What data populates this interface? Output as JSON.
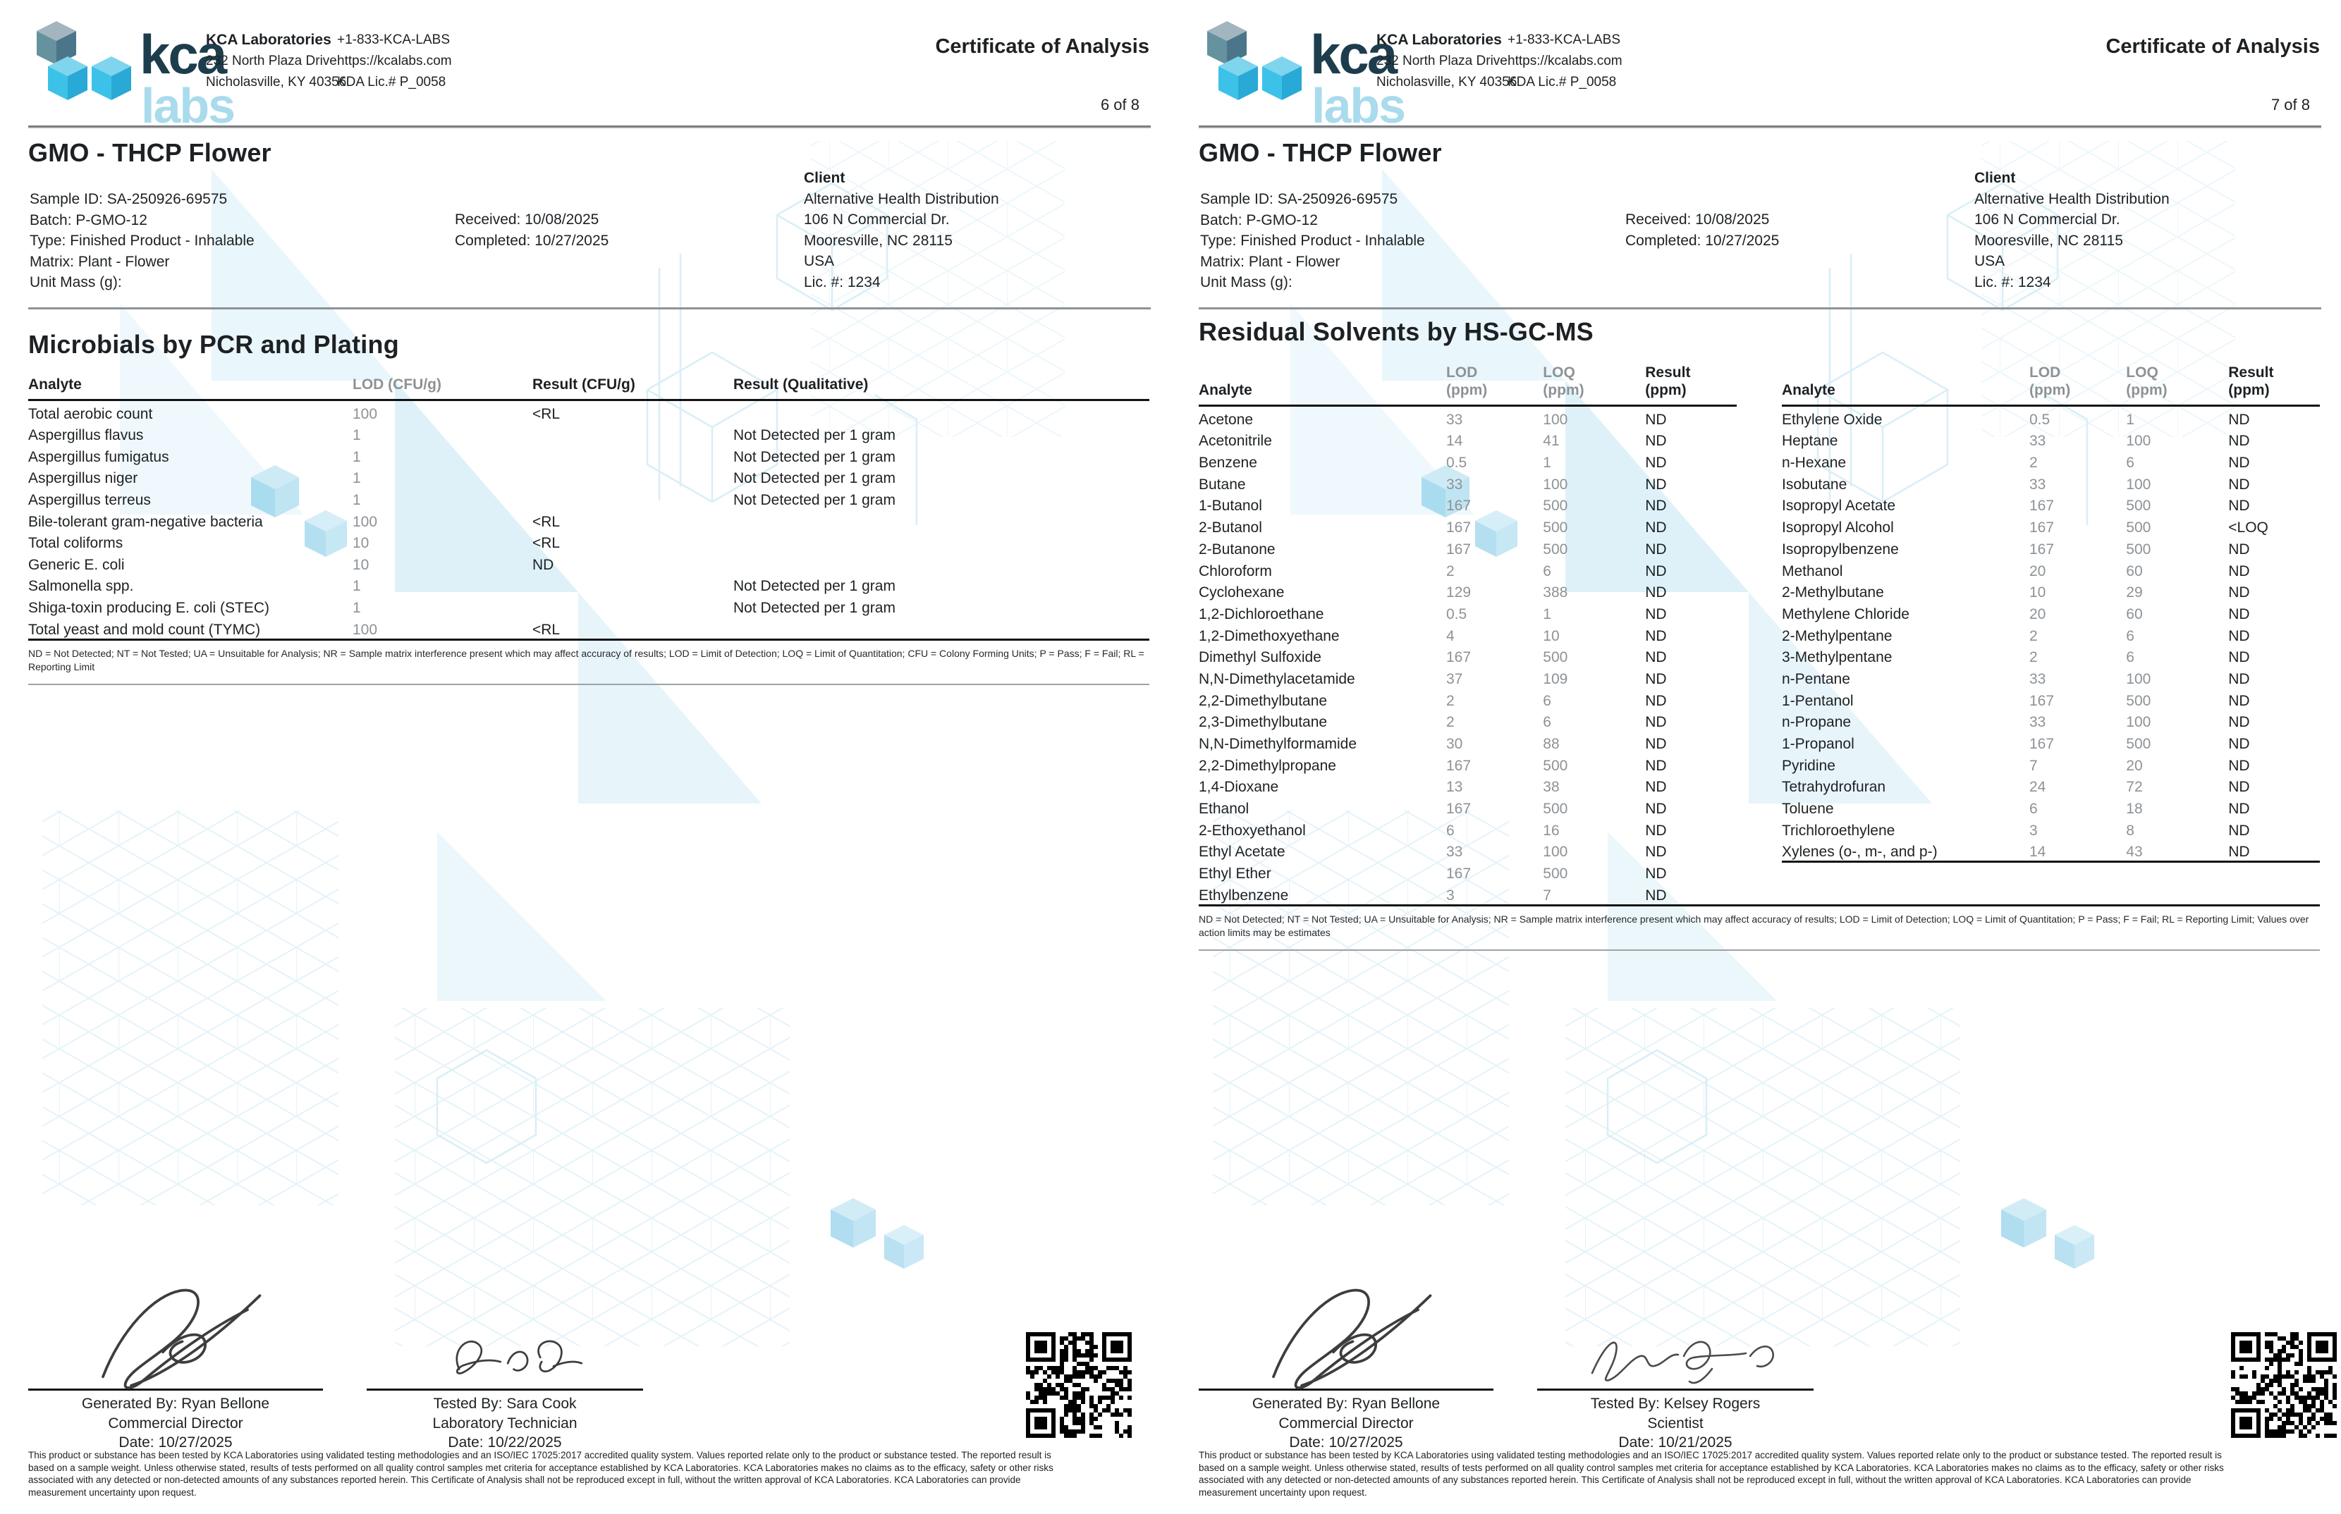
{
  "brand": {
    "logo_word_1": "kca",
    "logo_word_2": "labs",
    "colors": {
      "logo_dark_text": "#1d3d4d",
      "logo_light_text": "#a9dbed",
      "cube_bright": "#3cc2e8",
      "cube_muted": "#66929f",
      "watermark": "#ddf0f8",
      "muted_value_text": "#8d9296"
    }
  },
  "header": {
    "lab_name": "KCA Laboratories",
    "address1": "232 North Plaza Drive",
    "address2": "Nicholasville, KY 40356",
    "phone": "+1-833-KCA-LABS",
    "website": "https://kcalabs.com",
    "license": "KDA Lic.# P_0058",
    "doc_title": "Certificate of Analysis"
  },
  "sample": {
    "name": "GMO - THCP Flower",
    "meta_lines": [
      "Sample ID: SA-250926-69575",
      "Batch: P-GMO-12",
      "Type: Finished Product - Inhalable",
      "Matrix: Plant - Flower",
      "Unit Mass (g):"
    ],
    "received": "Received: 10/08/2025",
    "completed": "Completed: 10/27/2025"
  },
  "client": {
    "heading": "Client",
    "lines": [
      "Alternative Health Distribution",
      "106 N Commercial Dr.",
      "Mooresville, NC 28115",
      "USA",
      "Lic. #: 1234"
    ]
  },
  "page6": {
    "page_number": "6 of 8",
    "section_title": "Microbials by PCR and Plating",
    "table": {
      "headers": [
        "Analyte",
        "LOD (CFU/g)",
        "Result (CFU/g)",
        "Result (Qualitative)"
      ],
      "rows": [
        [
          "Total aerobic count",
          "100",
          "<RL",
          ""
        ],
        [
          "Aspergillus flavus",
          "1",
          "",
          "Not Detected per 1 gram"
        ],
        [
          "Aspergillus fumigatus",
          "1",
          "",
          "Not Detected per 1 gram"
        ],
        [
          "Aspergillus niger",
          "1",
          "",
          "Not Detected per 1 gram"
        ],
        [
          "Aspergillus terreus",
          "1",
          "",
          "Not Detected per 1 gram"
        ],
        [
          "Bile-tolerant gram-negative bacteria",
          "100",
          "<RL",
          ""
        ],
        [
          "Total coliforms",
          "10",
          "<RL",
          ""
        ],
        [
          "Generic E. coli",
          "10",
          "ND",
          ""
        ],
        [
          "Salmonella spp.",
          "1",
          "",
          "Not Detected per 1 gram"
        ],
        [
          "Shiga-toxin producing E. coli (STEC)",
          "1",
          "",
          "Not Detected per 1 gram"
        ],
        [
          "Total yeast and mold count (TYMC)",
          "100",
          "<RL",
          ""
        ]
      ]
    },
    "footnote": "ND = Not Detected; NT = Not Tested; UA = Unsuitable for Analysis; NR = Sample matrix interference present which may affect accuracy of results; LOD = Limit of Detection; LOQ = Limit of Quantitation; CFU = Colony Forming Units; P = Pass; F = Fail; RL = Reporting Limit",
    "signatures": [
      {
        "name": "Generated By: Ryan Bellone",
        "role": "Commercial Director",
        "date": "Date: 10/27/2025"
      },
      {
        "name": "Tested By: Sara Cook",
        "role": "Laboratory Technician",
        "date": "Date: 10/22/2025"
      }
    ]
  },
  "page7": {
    "page_number": "7 of 8",
    "section_title": "Residual Solvents by HS-GC-MS",
    "col_headers": {
      "analyte": "Analyte",
      "lod": "LOD",
      "loq": "LOQ",
      "result": "Result",
      "unit": "(ppm)"
    },
    "table_left": {
      "rows": [
        [
          "Acetone",
          "33",
          "100",
          "ND"
        ],
        [
          "Acetonitrile",
          "14",
          "41",
          "ND"
        ],
        [
          "Benzene",
          "0.5",
          "1",
          "ND"
        ],
        [
          "Butane",
          "33",
          "100",
          "ND"
        ],
        [
          "1-Butanol",
          "167",
          "500",
          "ND"
        ],
        [
          "2-Butanol",
          "167",
          "500",
          "ND"
        ],
        [
          "2-Butanone",
          "167",
          "500",
          "ND"
        ],
        [
          "Chloroform",
          "2",
          "6",
          "ND"
        ],
        [
          "Cyclohexane",
          "129",
          "388",
          "ND"
        ],
        [
          "1,2-Dichloroethane",
          "0.5",
          "1",
          "ND"
        ],
        [
          "1,2-Dimethoxyethane",
          "4",
          "10",
          "ND"
        ],
        [
          "Dimethyl Sulfoxide",
          "167",
          "500",
          "ND"
        ],
        [
          "N,N-Dimethylacetamide",
          "37",
          "109",
          "ND"
        ],
        [
          "2,2-Dimethylbutane",
          "2",
          "6",
          "ND"
        ],
        [
          "2,3-Dimethylbutane",
          "2",
          "6",
          "ND"
        ],
        [
          "N,N-Dimethylformamide",
          "30",
          "88",
          "ND"
        ],
        [
          "2,2-Dimethylpropane",
          "167",
          "500",
          "ND"
        ],
        [
          "1,4-Dioxane",
          "13",
          "38",
          "ND"
        ],
        [
          "Ethanol",
          "167",
          "500",
          "ND"
        ],
        [
          "2-Ethoxyethanol",
          "6",
          "16",
          "ND"
        ],
        [
          "Ethyl Acetate",
          "33",
          "100",
          "ND"
        ],
        [
          "Ethyl Ether",
          "167",
          "500",
          "ND"
        ],
        [
          "Ethylbenzene",
          "3",
          "7",
          "ND"
        ]
      ]
    },
    "table_right": {
      "rows": [
        [
          "Ethylene Oxide",
          "0.5",
          "1",
          "ND"
        ],
        [
          "Heptane",
          "33",
          "100",
          "ND"
        ],
        [
          "n-Hexane",
          "2",
          "6",
          "ND"
        ],
        [
          "Isobutane",
          "33",
          "100",
          "ND"
        ],
        [
          "Isopropyl Acetate",
          "167",
          "500",
          "ND"
        ],
        [
          "Isopropyl Alcohol",
          "167",
          "500",
          "<LOQ"
        ],
        [
          "Isopropylbenzene",
          "167",
          "500",
          "ND"
        ],
        [
          "Methanol",
          "20",
          "60",
          "ND"
        ],
        [
          "2-Methylbutane",
          "10",
          "29",
          "ND"
        ],
        [
          "Methylene Chloride",
          "20",
          "60",
          "ND"
        ],
        [
          "2-Methylpentane",
          "2",
          "6",
          "ND"
        ],
        [
          "3-Methylpentane",
          "2",
          "6",
          "ND"
        ],
        [
          "n-Pentane",
          "33",
          "100",
          "ND"
        ],
        [
          "1-Pentanol",
          "167",
          "500",
          "ND"
        ],
        [
          "n-Propane",
          "33",
          "100",
          "ND"
        ],
        [
          "1-Propanol",
          "167",
          "500",
          "ND"
        ],
        [
          "Pyridine",
          "7",
          "20",
          "ND"
        ],
        [
          "Tetrahydrofuran",
          "24",
          "72",
          "ND"
        ],
        [
          "Toluene",
          "6",
          "18",
          "ND"
        ],
        [
          "Trichloroethylene",
          "3",
          "8",
          "ND"
        ],
        [
          "Xylenes (o-, m-, and p-)",
          "14",
          "43",
          "ND"
        ]
      ]
    },
    "footnote": "ND = Not Detected; NT = Not Tested; UA = Unsuitable for Analysis; NR = Sample matrix interference present which may affect accuracy of results; LOD = Limit of Detection; LOQ = Limit of Quantitation; P = Pass; F = Fail; RL = Reporting Limit; Values over action limits may be estimates",
    "signatures": [
      {
        "name": "Generated By: Ryan Bellone",
        "role": "Commercial Director",
        "date": "Date: 10/27/2025"
      },
      {
        "name": "Tested By: Kelsey Rogers",
        "role": "Scientist",
        "date": "Date: 10/21/2025"
      }
    ]
  },
  "disclaimer": "This product or substance has been tested by KCA Laboratories using validated testing methodologies and an ISO/IEC 17025:2017 accredited quality system. Values reported relate only to the product or substance tested. The reported result is based on a sample weight. Unless otherwise stated, results of tests performed on all quality control samples met criteria for acceptance established by KCA Laboratories. KCA Laboratories makes no claims as to the efficacy, safety or other risks associated with any detected or non-detected amounts of any substances reported herein. This Certificate of Analysis shall not be reproduced except in full, without the written approval of KCA Laboratories. KCA Laboratories can provide measurement uncertainty upon request."
}
